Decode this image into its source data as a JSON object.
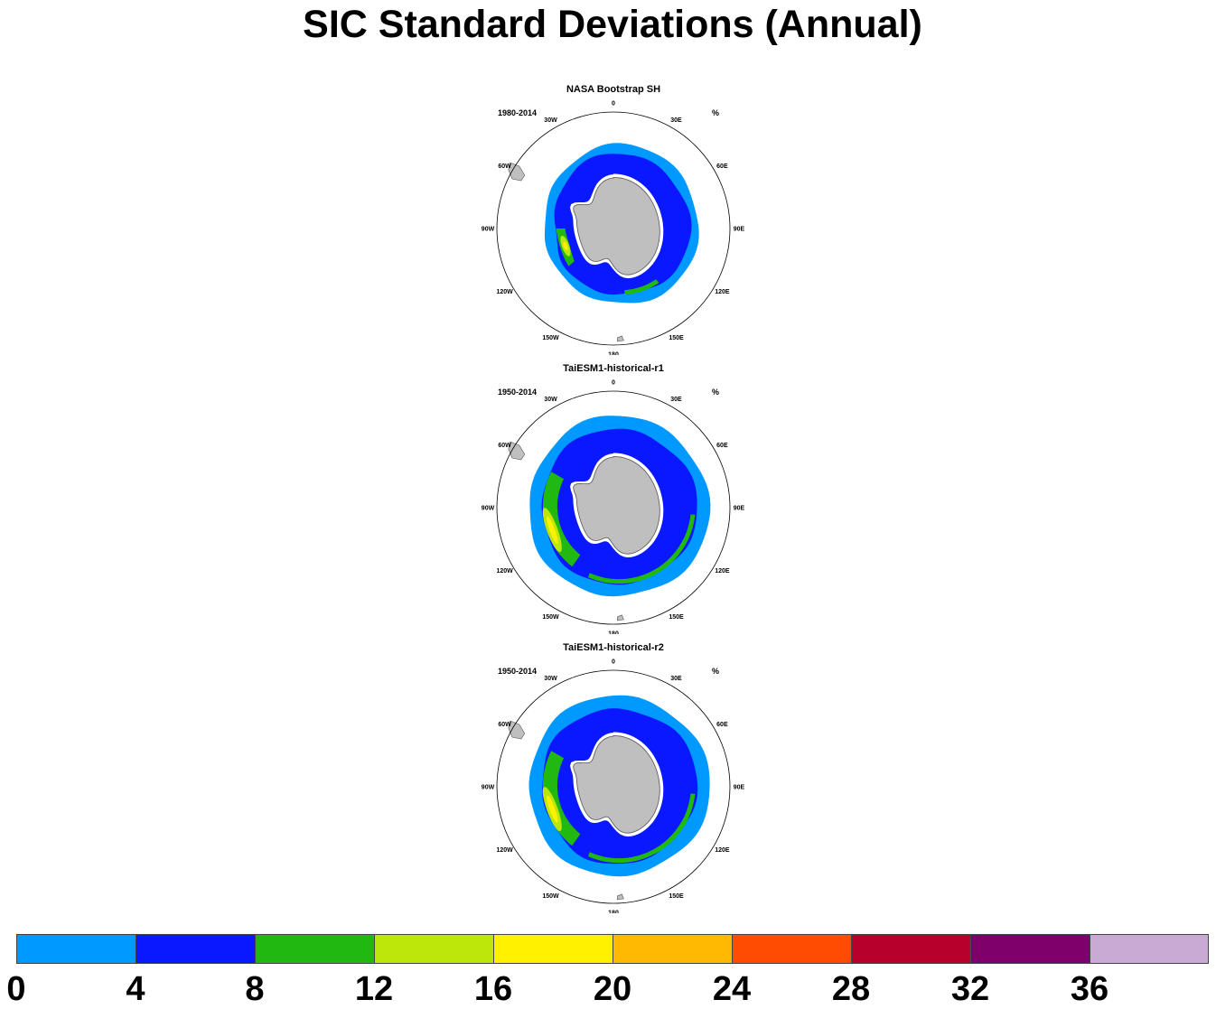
{
  "title": "SIC Standard Deviations (Annual)",
  "unit": "%",
  "panels": [
    {
      "name": "NASA Bootstrap SH",
      "period": "1980-2014"
    },
    {
      "name": "TaiESM1-historical-r1",
      "period": "1950-2014"
    },
    {
      "name": "TaiESM1-historical-r2",
      "period": "1950-2014"
    }
  ],
  "longitude_labels": [
    "0",
    "30E",
    "60E",
    "90E",
    "120E",
    "150E",
    "180",
    "150W",
    "120W",
    "90W",
    "60W",
    "30W"
  ],
  "colorbar": {
    "levels": [
      "0",
      "4",
      "8",
      "12",
      "16",
      "20",
      "24",
      "28",
      "32",
      "36"
    ],
    "colors": [
      "#0099ff",
      "#0a18ff",
      "#21b80f",
      "#bde60b",
      "#fff100",
      "#ffb900",
      "#ff4c00",
      "#b8002d",
      "#80006b",
      "#c8aad4"
    ]
  },
  "colors": {
    "land": "#bfbfbf",
    "coast": "#555555"
  }
}
